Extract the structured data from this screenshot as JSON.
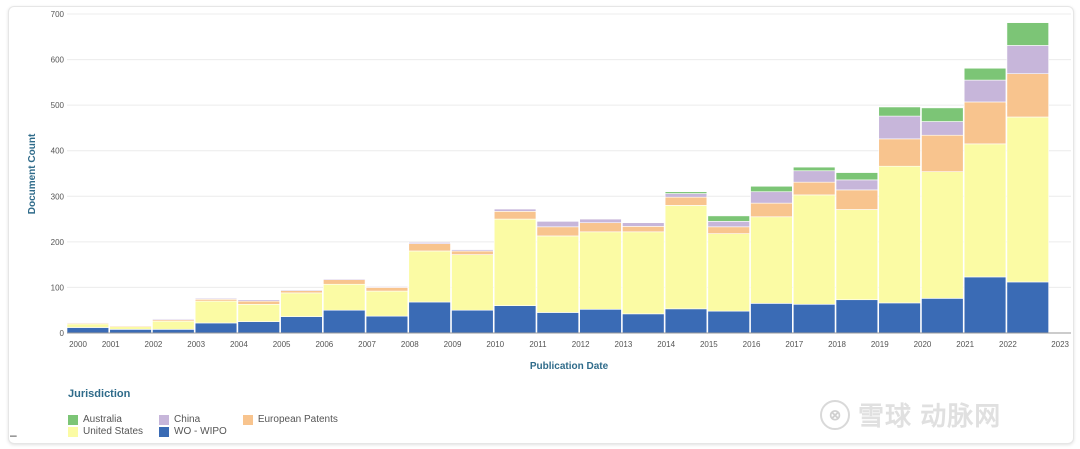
{
  "chart_data": {
    "type": "bar",
    "stacked": true,
    "xlabel": "Publication Date",
    "ylabel": "Document Count",
    "ylim": [
      0,
      700
    ],
    "yticks": [
      0,
      100,
      200,
      300,
      400,
      500,
      600,
      700
    ],
    "grid": true,
    "legend_title": "Jurisdiction",
    "legend_placement": "bottom-left",
    "categories": [
      "2000",
      "2001",
      "2002",
      "2003",
      "2004",
      "2005",
      "2006",
      "2007",
      "2008",
      "2009",
      "2010",
      "2011",
      "2012",
      "2013",
      "2014",
      "2015",
      "2016",
      "2017",
      "2018",
      "2019",
      "2020",
      "2021",
      "2022",
      "2023"
    ],
    "series": [
      {
        "name": "WO - WIPO",
        "color": "#3a6bb5",
        "values": [
          12,
          8,
          8,
          22,
          25,
          36,
          50,
          37,
          68,
          50,
          60,
          45,
          52,
          42,
          53,
          48,
          65,
          63,
          73,
          66,
          76,
          123,
          112,
          0
        ]
      },
      {
        "name": "United States",
        "color": "#fbfba4",
        "values": [
          8,
          6,
          18,
          48,
          38,
          52,
          57,
          55,
          112,
          122,
          190,
          168,
          170,
          180,
          227,
          170,
          190,
          240,
          198,
          300,
          278,
          292,
          362,
          0
        ]
      },
      {
        "name": "European Patents",
        "color": "#f8c48e",
        "values": [
          2,
          2,
          3,
          4,
          7,
          5,
          10,
          8,
          16,
          8,
          17,
          20,
          20,
          12,
          18,
          15,
          30,
          28,
          43,
          60,
          80,
          92,
          95,
          0
        ]
      },
      {
        "name": "China",
        "color": "#c7b6da",
        "values": [
          0,
          0,
          2,
          2,
          3,
          2,
          2,
          2,
          3,
          3,
          5,
          12,
          8,
          8,
          8,
          12,
          25,
          25,
          22,
          50,
          30,
          48,
          62,
          0
        ]
      },
      {
        "name": "Australia",
        "color": "#7cc576",
        "values": [
          0,
          0,
          0,
          0,
          0,
          0,
          0,
          0,
          0,
          0,
          0,
          0,
          0,
          0,
          4,
          12,
          12,
          8,
          16,
          20,
          30,
          26,
          50,
          0
        ]
      }
    ]
  },
  "legend": {
    "title": "Jurisdiction",
    "items": [
      {
        "label": "Australia",
        "color": "#7cc576"
      },
      {
        "label": "China",
        "color": "#c7b6da"
      },
      {
        "label": "European Patents",
        "color": "#f8c48e"
      },
      {
        "label": "United States",
        "color": "#fbfba4"
      },
      {
        "label": "WO - WIPO",
        "color": "#3a6bb5"
      }
    ]
  },
  "watermark": {
    "logo": "⊗",
    "text": "雪球 动脉网"
  }
}
